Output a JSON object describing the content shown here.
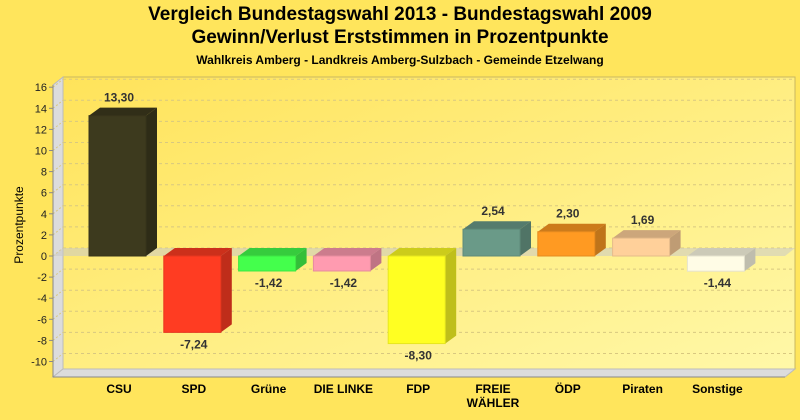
{
  "chart_data": {
    "type": "bar",
    "title": "Vergleich Bundestagswahl 2013 - Bundestagswahl 2009",
    "subtitle": "Gewinn/Verlust Erststimmen in Prozentpunkte",
    "subtitle2": "Wahlkreis Amberg - Landkreis Amberg-Sulzbach - Gemeinde Etzelwang",
    "xlabel": "",
    "ylabel": "Prozentpunkte",
    "ylim": [
      -11,
      17
    ],
    "yticks": [
      16,
      14,
      12,
      10,
      8,
      6,
      4,
      2,
      0,
      -2,
      -4,
      -6,
      -8,
      -10
    ],
    "grid": true,
    "categories": [
      [
        "CSU"
      ],
      [
        "SPD"
      ],
      [
        "Grüne"
      ],
      [
        "DIE LINKE"
      ],
      [
        "FDP"
      ],
      [
        "FREIE",
        "WÄHLER"
      ],
      [
        "ÖDP"
      ],
      [
        "Piraten"
      ],
      [
        "Sonstige"
      ]
    ],
    "values": [
      13.3,
      -7.24,
      -1.42,
      -1.42,
      -8.3,
      2.54,
      2.3,
      1.69,
      -1.44
    ],
    "value_labels": [
      "13,30",
      "-7,24",
      "-1,42",
      "-1,42",
      "-8,30",
      "2,54",
      "2,30",
      "1,69",
      "-1,44"
    ],
    "colors": [
      "#3d3a1e",
      "#ff3c22",
      "#44ff4c",
      "#ff9bb0",
      "#ffff22",
      "#6a9a88",
      "#ff9a22",
      "#ffd09a",
      "#fffce6"
    ]
  }
}
